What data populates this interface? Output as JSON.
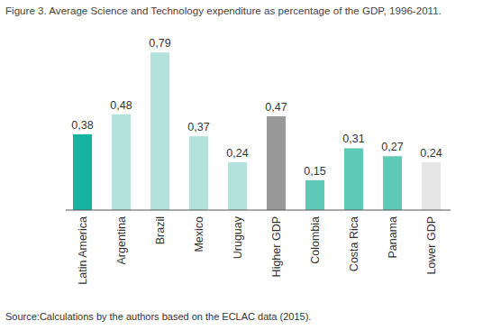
{
  "chart_data": {
    "type": "bar",
    "title": "Figure 3. Average Science and Technology expenditure as percentage of the GDP, 1996-2011.",
    "source": "Source:Calculations by the authors based on the ECLAC data (2015).",
    "categories": [
      "Latin America",
      "Argentina",
      "Brazil",
      "Mexico",
      "Uruguay",
      "Higher GDP",
      "Colombia",
      "Costa Rica",
      "Panama",
      "Lower GDP"
    ],
    "values": [
      0.38,
      0.48,
      0.79,
      0.37,
      0.24,
      0.47,
      0.15,
      0.31,
      0.27,
      0.24
    ],
    "value_labels": [
      "0,38",
      "0,48",
      "0,79",
      "0,37",
      "0,24",
      "0,47",
      "0,15",
      "0,31",
      "0,27",
      "0,24"
    ],
    "colors": [
      "#17b3a1",
      "#b3e1dc",
      "#b3e1dc",
      "#b3e1dc",
      "#b3e1dc",
      "#999999",
      "#5fc9b8",
      "#5fc9b8",
      "#5fc9b8",
      "#e6e6e6"
    ],
    "ylim": [
      0,
      0.8
    ],
    "data_labels": true,
    "tick_labels": "x",
    "grid": false
  }
}
